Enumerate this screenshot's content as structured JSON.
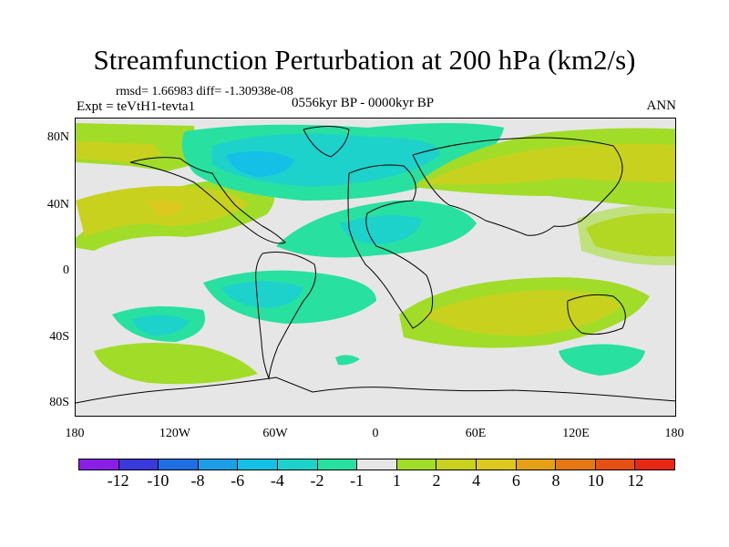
{
  "title": "Streamfunction Perturbation at 200 hPa (km2/s)",
  "stats": "rmsd= 1.66983 diff= -1.30938e-08",
  "expt": "Expt = teVtH1-tevta1",
  "period": "0556kyr BP - 0000kyr BP",
  "season": "ANN",
  "lat_labels": [
    "80N",
    "40N",
    "0",
    "40S",
    "80S"
  ],
  "lon_labels": [
    "180",
    "120W",
    "60W",
    "0",
    "60E",
    "120E",
    "180"
  ],
  "colorbar": {
    "colors": [
      "#8a1ee6",
      "#3a3adc",
      "#1e6ee6",
      "#1e9ee6",
      "#14c0e6",
      "#1ed2cc",
      "#28e0a0",
      "#e6e6e6",
      "#a0dc28",
      "#c8d21e",
      "#dcc81e",
      "#e6a014",
      "#e67814",
      "#e65014",
      "#e62814"
    ],
    "labels": [
      "-12",
      "-10",
      "-8",
      "-6",
      "-4",
      "-2",
      "-1",
      "1",
      "2",
      "4",
      "6",
      "8",
      "10",
      "12"
    ]
  }
}
